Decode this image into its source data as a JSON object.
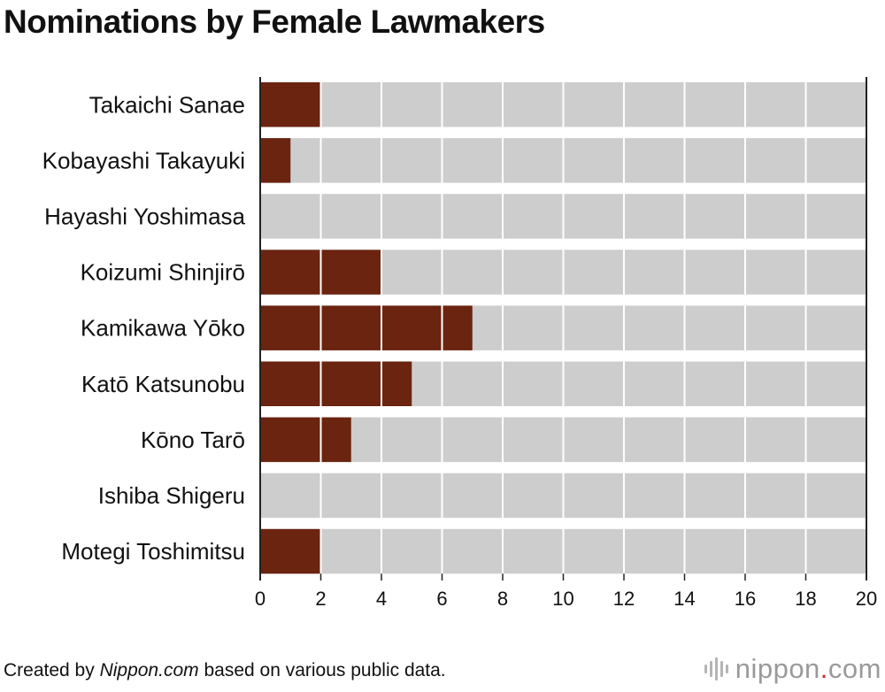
{
  "title": "Nominations by Female Lawmakers",
  "footer": {
    "prefix": "Created by ",
    "source_name": "Nippon.com",
    "suffix": " based on various public data."
  },
  "logo": {
    "name": "nippon",
    "dot": ".",
    "tld": "com"
  },
  "colors": {
    "bar": "#6a2410",
    "track": "#cdcdcd",
    "grid": "#ffffff",
    "axis": "#222222"
  },
  "chart_data": {
    "type": "bar",
    "orientation": "horizontal",
    "title": "Nominations by Female Lawmakers",
    "categories": [
      "Takaichi Sanae",
      "Kobayashi Takayuki",
      "Hayashi Yoshimasa",
      "Koizumi Shinjirō",
      "Kamikawa Yōko",
      "Katō Katsunobu",
      "Kōno Tarō",
      "Ishiba Shigeru",
      "Motegi Toshimitsu"
    ],
    "values": [
      2,
      1,
      0,
      4,
      7,
      5,
      3,
      0,
      2
    ],
    "xlim": [
      0,
      20
    ],
    "xticks": [
      0,
      2,
      4,
      6,
      8,
      10,
      12,
      14,
      16,
      18,
      20
    ],
    "xlabel": "",
    "ylabel": "",
    "grid": true
  }
}
